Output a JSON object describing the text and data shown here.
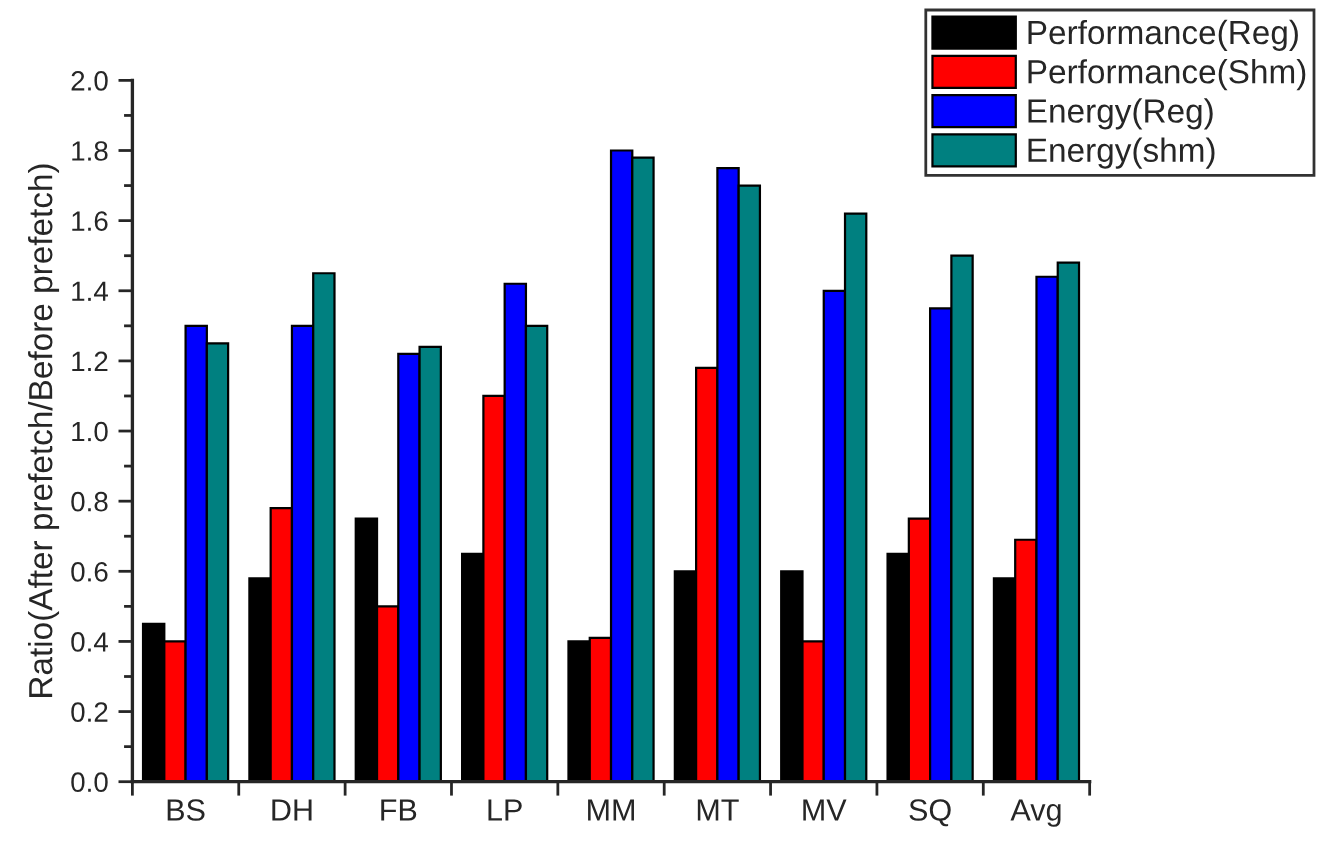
{
  "chart_data": {
    "type": "bar",
    "ylabel": "Ratio(After prefetch/Before prefetch)",
    "categories": [
      "BS",
      "DH",
      "FB",
      "LP",
      "MM",
      "MT",
      "MV",
      "SQ",
      "Avg"
    ],
    "series": [
      {
        "name": "Performance(Reg)",
        "color": "#000000",
        "values": [
          0.45,
          0.58,
          0.75,
          0.65,
          0.4,
          0.6,
          0.6,
          0.65,
          0.58
        ]
      },
      {
        "name": "Performance(Shm)",
        "color": "#ff0000",
        "values": [
          0.4,
          0.78,
          0.5,
          1.1,
          0.41,
          1.18,
          0.4,
          0.75,
          0.69
        ]
      },
      {
        "name": "Energy(Reg)",
        "color": "#0000ff",
        "values": [
          1.3,
          1.3,
          1.22,
          1.42,
          1.8,
          1.75,
          1.4,
          1.35,
          1.44
        ]
      },
      {
        "name": "Energy(shm)",
        "color": "#008080",
        "values": [
          1.25,
          1.45,
          1.24,
          1.3,
          1.78,
          1.7,
          1.62,
          1.5,
          1.48
        ]
      }
    ],
    "ylim": [
      0,
      2.0
    ],
    "yticks": [
      {
        "value": 0,
        "label": "0.0"
      },
      {
        "value": 0.2,
        "label": "0.2"
      },
      {
        "value": 0.4,
        "label": "0.4"
      },
      {
        "value": 0.6,
        "label": "0.6"
      },
      {
        "value": 0.8,
        "label": "0.8"
      },
      {
        "value": 1,
        "label": "1.0"
      },
      {
        "value": 1.2,
        "label": "1.2"
      },
      {
        "value": 1.4,
        "label": "1.4"
      },
      {
        "value": 1.6,
        "label": "1.6"
      },
      {
        "value": 1.8,
        "label": "1.8"
      },
      {
        "value": 2,
        "label": "2.0"
      }
    ],
    "grid": false,
    "legend": "top right"
  }
}
